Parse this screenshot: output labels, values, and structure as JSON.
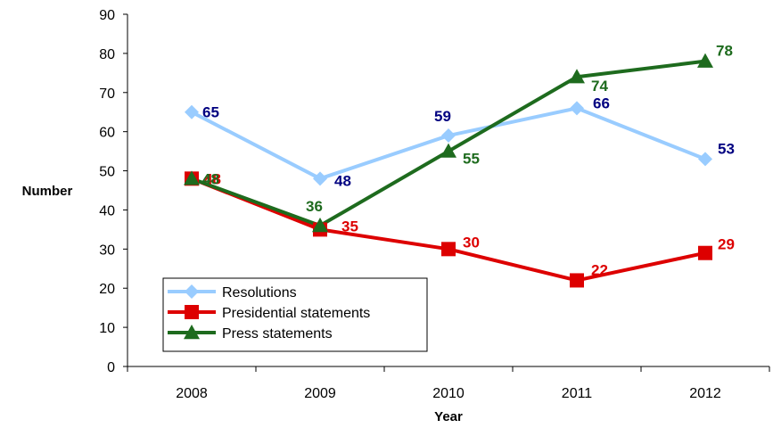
{
  "chart_data": {
    "type": "line",
    "categories": [
      "2008",
      "2009",
      "2010",
      "2011",
      "2012"
    ],
    "xlabel": "Year",
    "ylabel": "Number",
    "ylim": [
      0,
      90
    ],
    "yticks": [
      "0",
      "10",
      "20",
      "30",
      "40",
      "50",
      "60",
      "70",
      "80",
      "90"
    ],
    "grid": false,
    "legend_position": "bottom-left",
    "series": [
      {
        "name": "Resolutions",
        "values": [
          65,
          48,
          59,
          66,
          53
        ],
        "color": "#99CCFF",
        "label_color": "#000080",
        "marker": "diamond"
      },
      {
        "name": "Presidential statements",
        "values": [
          48,
          35,
          30,
          22,
          29
        ],
        "color": "#DD0000",
        "label_color": "#DD0000",
        "marker": "square"
      },
      {
        "name": "Press statements",
        "values": [
          48,
          36,
          55,
          74,
          78
        ],
        "color": "#1E6B1E",
        "label_color": "#1E6B1E",
        "marker": "triangle"
      }
    ]
  }
}
